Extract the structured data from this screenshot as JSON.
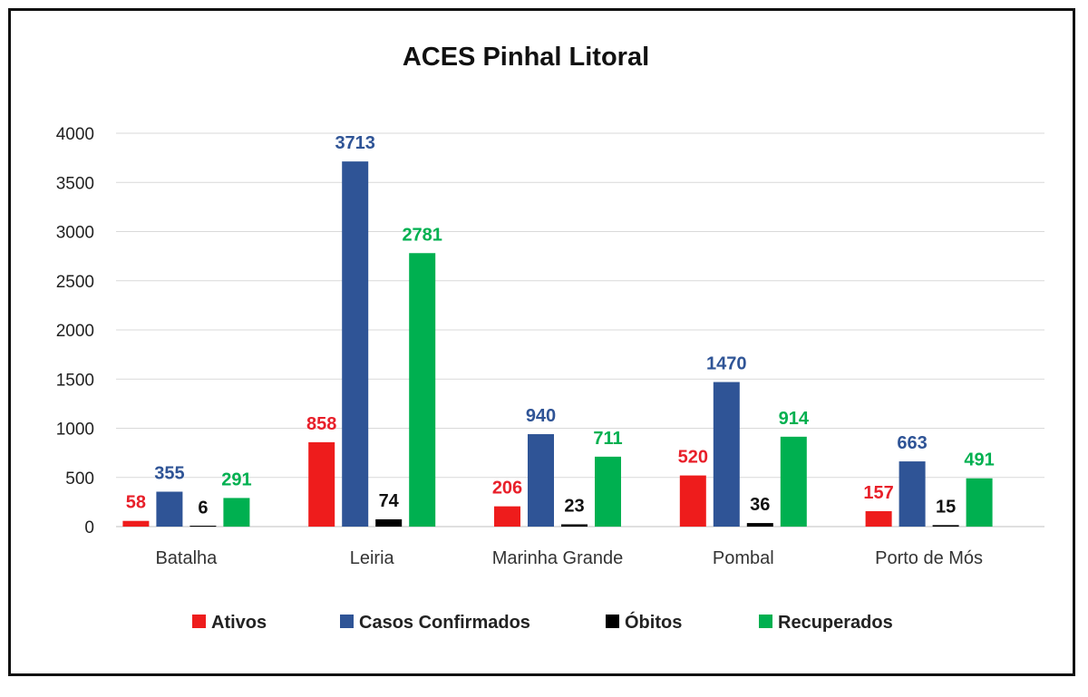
{
  "chart_data": {
    "type": "bar",
    "title": "ACES Pinhal Litoral",
    "xlabel": "",
    "ylabel": "",
    "ylim": [
      0,
      4000
    ],
    "yticks": [
      0,
      500,
      1000,
      1500,
      2000,
      2500,
      3000,
      3500,
      4000
    ],
    "grid": true,
    "legend_position": "bottom",
    "categories": [
      "Batalha",
      "Leiria",
      "Marinha Grande",
      "Pombal",
      "Porto de Mós"
    ],
    "series": [
      {
        "name": "Ativos",
        "color": "#ee1c1c",
        "label_color": "#e8202a",
        "values": [
          58,
          858,
          206,
          520,
          157
        ]
      },
      {
        "name": "Casos Confirmados",
        "color": "#2f5496",
        "label_color": "#2f5496",
        "values": [
          355,
          3713,
          940,
          1470,
          663
        ]
      },
      {
        "name": "Óbitos",
        "color": "#000000",
        "label_color": "#111111",
        "values": [
          6,
          74,
          23,
          36,
          15
        ]
      },
      {
        "name": "Recuperados",
        "color": "#00b050",
        "label_color": "#00b050",
        "values": [
          291,
          2781,
          711,
          914,
          491
        ]
      }
    ]
  }
}
